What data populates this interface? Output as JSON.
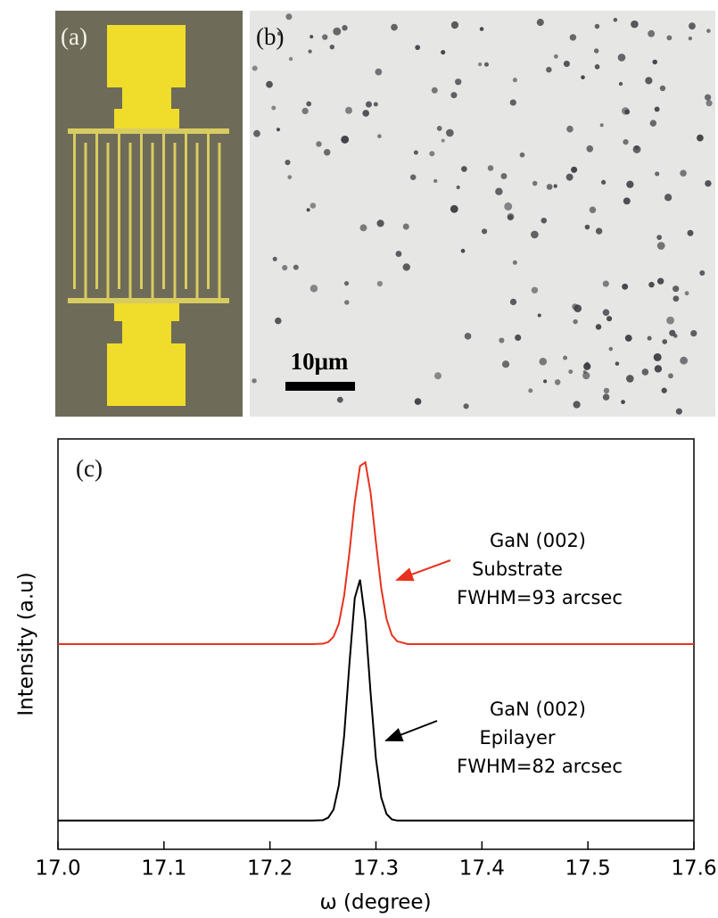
{
  "panels": {
    "a": {
      "label": "(a)"
    },
    "b": {
      "label": "(b)",
      "scale_bar": "10μm"
    }
  },
  "chart_data": {
    "type": "line",
    "panel_label": "(c)",
    "xlabel": "ω (degree)",
    "ylabel": "Intensity (a.u)",
    "xlim": [
      17.0,
      17.6
    ],
    "xticks": [
      {
        "value": 17.0,
        "label": "17.0"
      },
      17.1,
      17.2,
      17.3,
      17.4,
      17.5,
      17.6
    ],
    "ylim": [
      0,
      10
    ],
    "x": [
      17.0,
      17.2,
      17.24,
      17.25,
      17.255,
      17.26,
      17.265,
      17.27,
      17.275,
      17.28,
      17.285,
      17.29,
      17.295,
      17.3,
      17.305,
      17.31,
      17.315,
      17.32,
      17.33,
      17.34,
      17.4,
      17.6
    ],
    "series": [
      {
        "name": "Substrate",
        "color": "#e8321e",
        "values": [
          5.0,
          5.0,
          5.0,
          5.01,
          5.05,
          5.18,
          5.5,
          6.18,
          7.24,
          8.46,
          9.34,
          9.43,
          8.68,
          7.48,
          6.36,
          5.61,
          5.22,
          5.07,
          5.0,
          5.0,
          5.0,
          5.0
        ]
      },
      {
        "name": "Epilayer",
        "color": "#000000",
        "values": [
          0.7,
          0.7,
          0.7,
          0.71,
          0.77,
          0.97,
          1.56,
          2.77,
          4.53,
          6.12,
          6.57,
          5.57,
          3.79,
          2.2,
          1.26,
          0.86,
          0.73,
          0.7,
          0.7,
          0.7,
          0.7,
          0.7
        ]
      }
    ],
    "annotations": [
      [
        "GaN (002)",
        "Substrate",
        "FWHM=93 arcsec"
      ],
      [
        "GaN (002)",
        "Epilayer",
        "FWHM=82 arcsec"
      ]
    ]
  }
}
